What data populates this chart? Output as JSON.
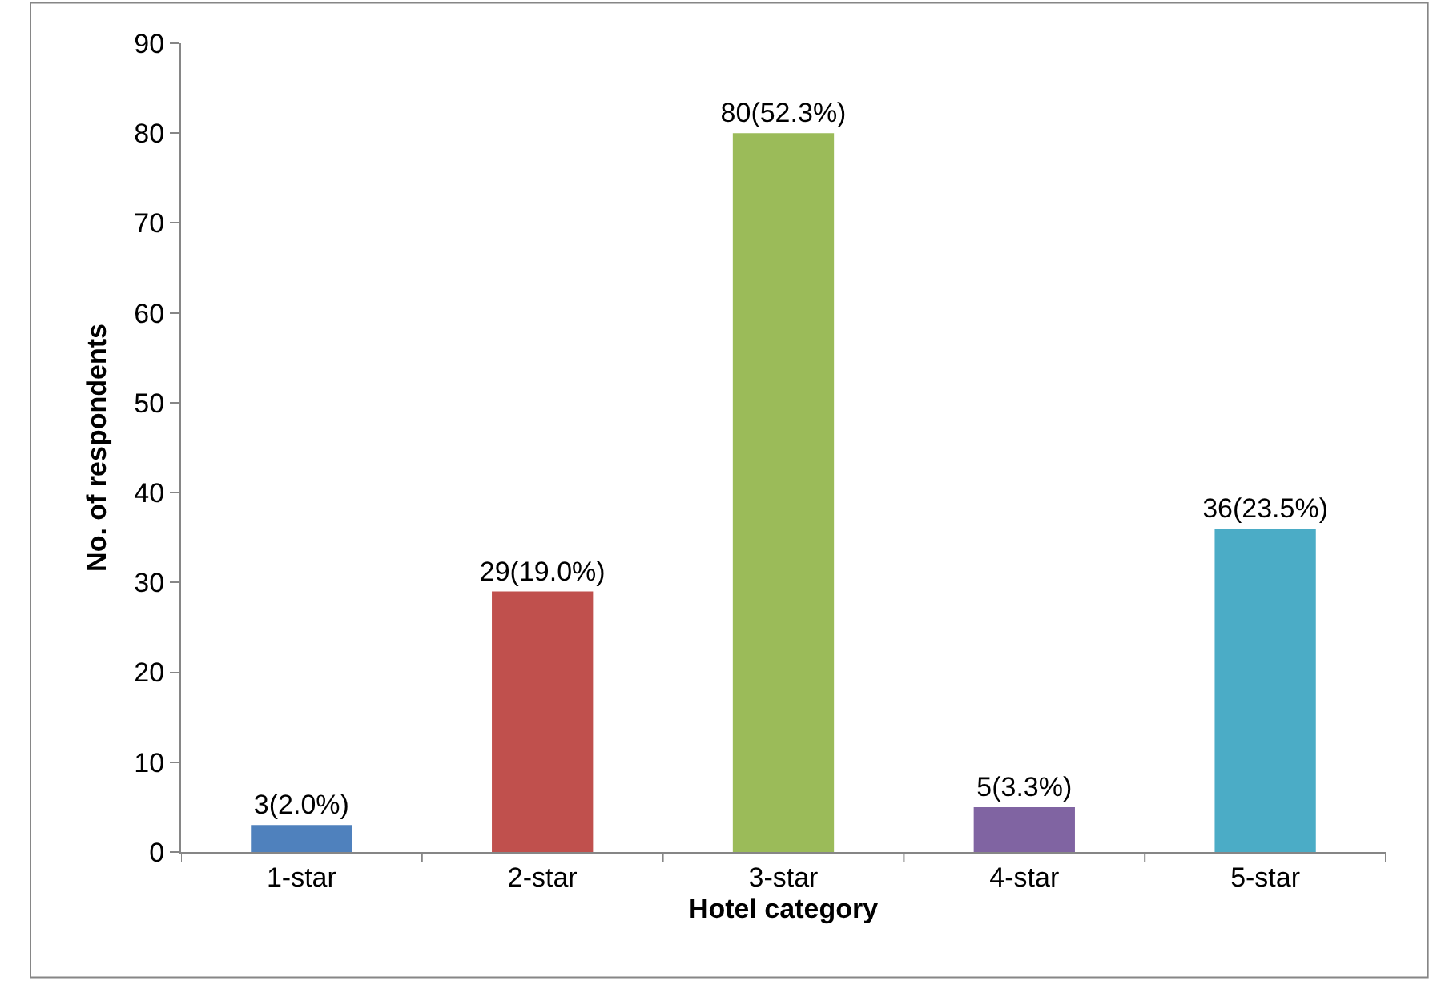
{
  "chart_data": {
    "type": "bar",
    "xlabel": "Hotel category",
    "ylabel": "No. of respondents",
    "categories": [
      "1-star",
      "2-star",
      "3-star",
      "4-star",
      "5-star"
    ],
    "values": [
      3,
      29,
      80,
      5,
      36
    ],
    "colors": [
      "#4f81bd",
      "#c0504d",
      "#9bbb59",
      "#8064a2",
      "#4bacc6"
    ],
    "value_labels": [
      "3(2.0%)",
      "29(19.0%)",
      "80(52.3%)",
      "5(3.3%)",
      "36(23.5%)"
    ],
    "ylim": [
      0,
      90
    ],
    "yticks": [
      0,
      10,
      20,
      30,
      40,
      50,
      60,
      70,
      80,
      90
    ],
    "legend": false
  }
}
